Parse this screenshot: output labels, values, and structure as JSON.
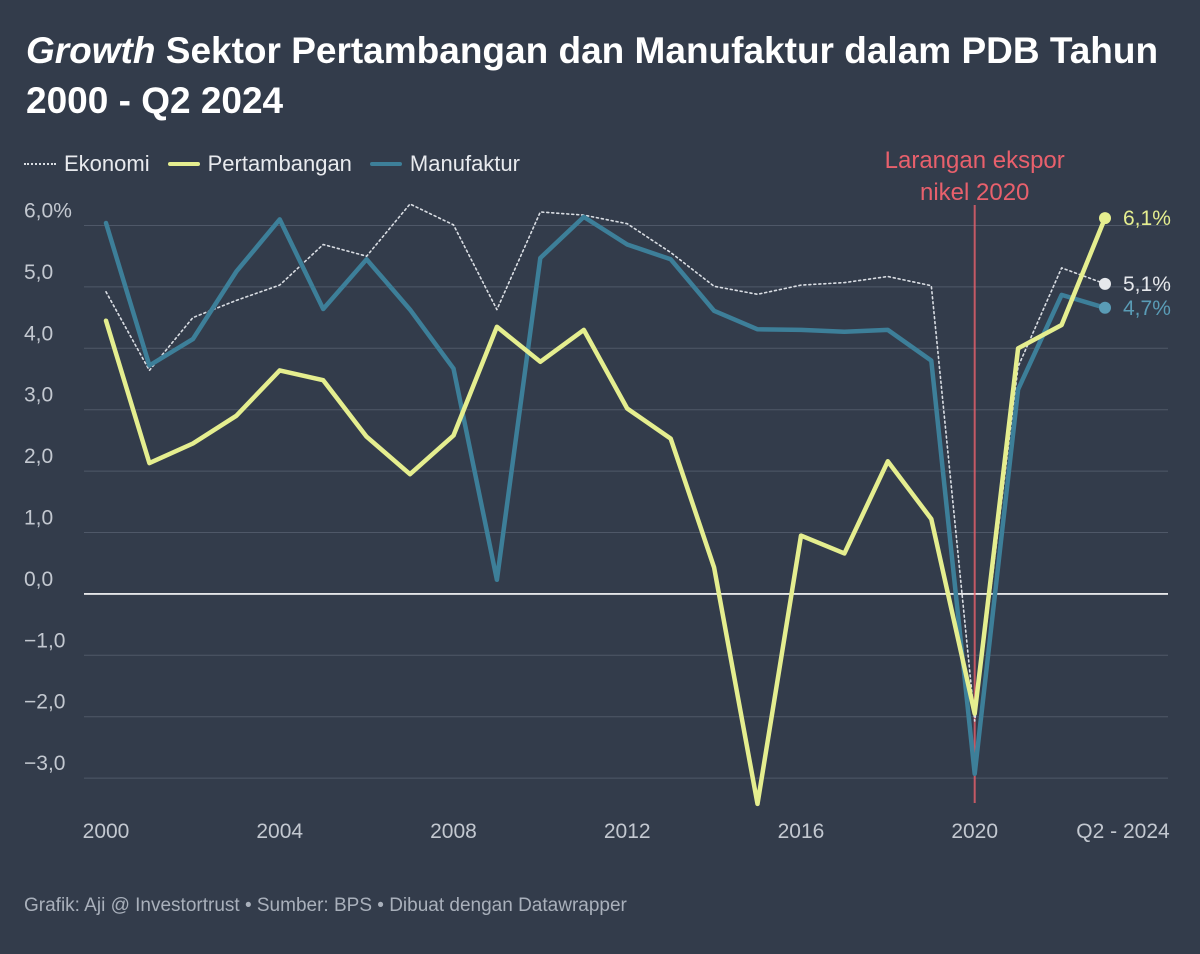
{
  "title": {
    "italic": "Growth",
    "rest": " Sektor Pertambangan dan Manufaktur dalam PDB Tahun 2000 - Q2 2024"
  },
  "legend": {
    "ekonomi": "Ekonomi",
    "pertambangan": "Pertambangan",
    "manufaktur": "Manufaktur"
  },
  "footer": "Grafik: Aji @ Investortrust • Sumber: BPS • Dibuat dengan Datawrapper",
  "colors": {
    "background": "#333c4b",
    "ekonomi": "#d9dde3",
    "pertambangan": "#e5ee8f",
    "manufaktur": "#3d7f99",
    "annotation": "#e8606c",
    "grid": "#4f5868",
    "zero_line": "#ffffff"
  },
  "chart_data": {
    "type": "line",
    "title": "Growth Sektor Pertambangan dan Manufaktur dalam PDB Tahun 2000 - Q2 2024",
    "xlabel": "",
    "ylabel": "",
    "x": [
      2000,
      2001,
      2002,
      2003,
      2004,
      2005,
      2006,
      2007,
      2008,
      2009,
      2010,
      2011,
      2012,
      2013,
      2014,
      2015,
      2016,
      2017,
      2018,
      2019,
      2020,
      2021,
      2022,
      2023
    ],
    "xlim": [
      2000,
      2023
    ],
    "ylim": [
      -3.5,
      6.5
    ],
    "x_ticks": [
      {
        "value": 2000,
        "label": "2000"
      },
      {
        "value": 2004,
        "label": "2004"
      },
      {
        "value": 2008,
        "label": "2008"
      },
      {
        "value": 2012,
        "label": "2012"
      },
      {
        "value": 2016,
        "label": "2016"
      },
      {
        "value": 2020,
        "label": "2020"
      },
      {
        "value": 2023,
        "label": "Q2 - 2024"
      }
    ],
    "y_ticks": [
      {
        "value": 6,
        "label": "6,0%"
      },
      {
        "value": 5,
        "label": "5,0"
      },
      {
        "value": 4,
        "label": "4,0"
      },
      {
        "value": 3,
        "label": "3,0"
      },
      {
        "value": 2,
        "label": "2,0"
      },
      {
        "value": 1,
        "label": "1,0"
      },
      {
        "value": 0,
        "label": "0,0"
      },
      {
        "value": -1,
        "label": "−1,0"
      },
      {
        "value": -2,
        "label": "−2,0"
      },
      {
        "value": -3,
        "label": "−3,0"
      }
    ],
    "series": [
      {
        "key": "ekonomi",
        "name": "Ekonomi",
        "style": "dotted",
        "values": [
          4.92,
          3.64,
          4.5,
          4.78,
          5.03,
          5.69,
          5.5,
          6.35,
          6.01,
          4.63,
          6.22,
          6.17,
          6.03,
          5.56,
          5.01,
          4.88,
          5.03,
          5.07,
          5.17,
          5.02,
          -2.07,
          3.7,
          5.31,
          5.05
        ],
        "end_label": "5,1%"
      },
      {
        "key": "pertambangan",
        "name": "Pertambangan",
        "style": "solid",
        "values": [
          4.45,
          2.13,
          2.45,
          2.9,
          3.64,
          3.48,
          2.56,
          1.95,
          2.58,
          4.35,
          3.78,
          4.3,
          3.02,
          2.53,
          0.43,
          -3.42,
          0.95,
          0.66,
          2.16,
          1.22,
          -1.95,
          4.0,
          4.38,
          6.12
        ],
        "end_label": "6,1%"
      },
      {
        "key": "manufaktur",
        "name": "Manufaktur",
        "style": "solid",
        "values": [
          6.04,
          3.72,
          4.15,
          5.25,
          6.1,
          4.64,
          5.45,
          4.63,
          3.67,
          0.23,
          5.47,
          6.14,
          5.69,
          5.45,
          4.61,
          4.31,
          4.3,
          4.27,
          4.3,
          3.8,
          -2.93,
          3.33,
          4.87,
          4.66
        ],
        "end_label": "4,7%"
      }
    ],
    "annotation": {
      "x": 2020,
      "line1": "Larangan ekspor",
      "line2": "nikel 2020"
    }
  }
}
